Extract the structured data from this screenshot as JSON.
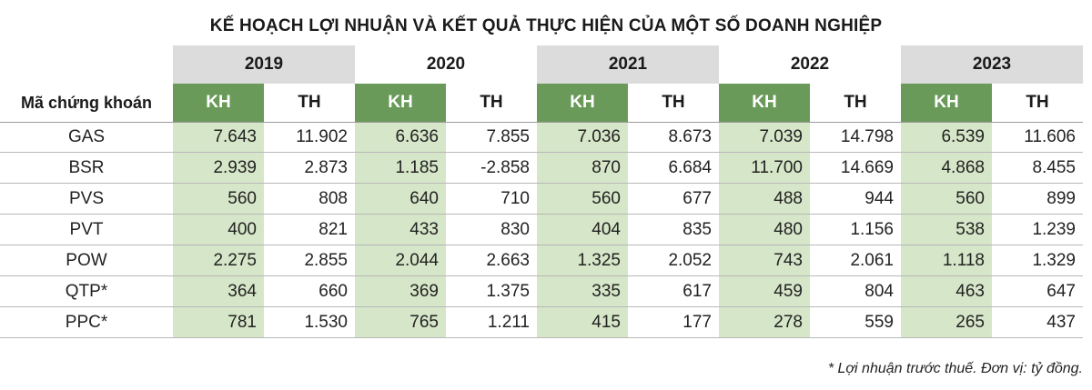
{
  "title": "KẾ HOẠCH LỢI NHUẬN VÀ KẾT QUẢ THỰC HIỆN CỦA MỘT SỐ DOANH NGHIỆP",
  "header": {
    "label": "Mã chứng khoán",
    "years": [
      "2019",
      "2020",
      "2021",
      "2022",
      "2023"
    ],
    "kh": "KH",
    "th": "TH"
  },
  "rows": [
    {
      "name": "GAS",
      "values": [
        "7.643",
        "11.902",
        "6.636",
        "7.855",
        "7.036",
        "8.673",
        "7.039",
        "14.798",
        "6.539",
        "11.606"
      ]
    },
    {
      "name": "BSR",
      "values": [
        "2.939",
        "2.873",
        "1.185",
        "-2.858",
        "870",
        "6.684",
        "11.700",
        "14.669",
        "4.868",
        "8.455"
      ]
    },
    {
      "name": "PVS",
      "values": [
        "560",
        "808",
        "640",
        "710",
        "560",
        "677",
        "488",
        "944",
        "560",
        "899"
      ]
    },
    {
      "name": "PVT",
      "values": [
        "400",
        "821",
        "433",
        "830",
        "404",
        "835",
        "480",
        "1.156",
        "538",
        "1.239"
      ]
    },
    {
      "name": "POW",
      "values": [
        "2.275",
        "2.855",
        "2.044",
        "2.663",
        "1.325",
        "2.052",
        "743",
        "2.061",
        "1.118",
        "1.329"
      ]
    },
    {
      "name": "QTP*",
      "values": [
        "364",
        "660",
        "369",
        "1.375",
        "335",
        "617",
        "459",
        "804",
        "463",
        "647"
      ]
    },
    {
      "name": "PPC*",
      "values": [
        "781",
        "1.530",
        "765",
        "1.211",
        "415",
        "177",
        "278",
        "559",
        "265",
        "437"
      ]
    }
  ],
  "footnote": "* Lợi nhuận trước thuế. Đơn vị: tỷ đồng.",
  "colors": {
    "kh_header": "#6a9a5a",
    "kh_cell": "#d6e6c8",
    "year_header": "#dcdcdc"
  }
}
